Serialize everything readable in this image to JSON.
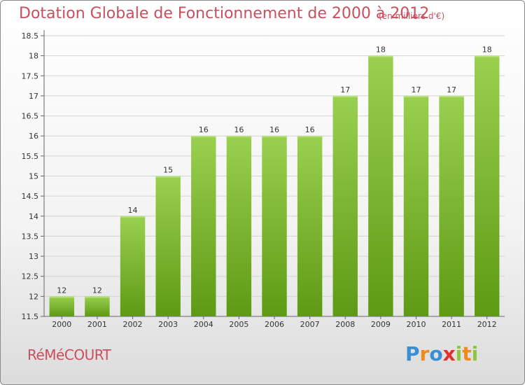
{
  "header": {
    "title": "Dotation Globale de Fonctionnement de 2000 à 2012",
    "subtitle": "(en milliers d'€)"
  },
  "footer": {
    "commune": "RéMéCOURT",
    "brand": "Proxiti",
    "brand_colors": [
      "#3a8fd4",
      "#f08a1c",
      "#3a8fd4",
      "#e0312f",
      "#8cc63f",
      "#f08a1c",
      "#8cc63f"
    ]
  },
  "colors": {
    "bar_top": "#9ad04f",
    "bar_bottom": "#5e9a14",
    "title": "#c8505e"
  },
  "chart_data": {
    "type": "bar",
    "title": "Dotation Globale de Fonctionnement de 2000 à 2012",
    "subtitle": "(en milliers d'€)",
    "categories": [
      "2000",
      "2001",
      "2002",
      "2003",
      "2004",
      "2005",
      "2006",
      "2007",
      "2008",
      "2009",
      "2010",
      "2011",
      "2012"
    ],
    "values": [
      12,
      12,
      14,
      15,
      16,
      16,
      16,
      16,
      17,
      18,
      17,
      17,
      18
    ],
    "data_labels": [
      "12",
      "12",
      "14",
      "15",
      "16",
      "16",
      "16",
      "16",
      "17",
      "18",
      "17",
      "17",
      "18"
    ],
    "ylim": [
      11.5,
      18.5
    ],
    "yticks": [
      "11.5",
      "12",
      "12.5",
      "13",
      "13.5",
      "14",
      "14.5",
      "15",
      "15.5",
      "16",
      "16.5",
      "17",
      "17.5",
      "18",
      "18.5"
    ],
    "xlabel": "",
    "ylabel": "",
    "grid": true
  }
}
